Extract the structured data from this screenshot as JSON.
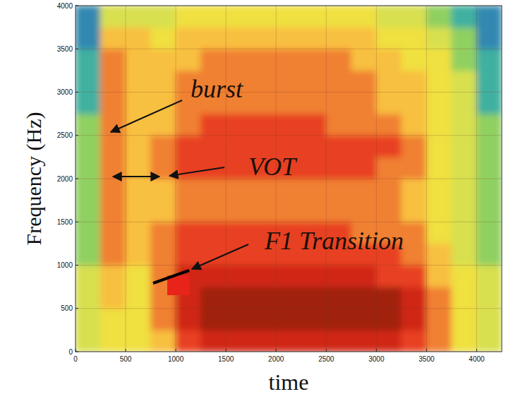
{
  "chart_data": {
    "type": "heatmap",
    "x_label": "time",
    "y_label": "Frequency (Hz)",
    "xlim": [
      0,
      4250
    ],
    "ylim": [
      0,
      4000
    ],
    "xticks": [
      0,
      500,
      1000,
      1500,
      2000,
      2500,
      3000,
      3500,
      4000
    ],
    "yticks": [
      0,
      500,
      1000,
      1500,
      2000,
      2500,
      3000,
      3500,
      4000
    ],
    "grid": true,
    "x_bins": [
      0,
      250,
      500,
      750,
      1000,
      1250,
      1500,
      1750,
      2000,
      2250,
      2500,
      2750,
      3000,
      3250,
      3500,
      3750,
      4000,
      4250
    ],
    "y_bins": [
      0,
      250,
      500,
      750,
      1000,
      1250,
      1500,
      1750,
      2000,
      2250,
      2500,
      2750,
      3000,
      3250,
      3500,
      3750,
      4000
    ],
    "cells": [
      [
        4,
        5,
        5,
        6,
        8,
        9,
        9,
        9,
        9,
        9,
        9,
        9,
        9,
        8,
        7,
        5,
        4
      ],
      [
        4,
        5,
        5,
        7,
        9,
        10,
        10,
        10,
        10,
        10,
        10,
        10,
        10,
        9,
        7,
        5,
        4
      ],
      [
        4,
        6,
        5,
        7,
        9,
        10,
        10,
        10,
        10,
        10,
        10,
        10,
        10,
        9,
        7,
        5,
        4
      ],
      [
        4,
        6,
        5,
        7,
        9,
        9,
        9,
        9,
        9,
        9,
        9,
        9,
        8,
        8,
        6,
        5,
        4
      ],
      [
        3,
        7,
        6,
        7,
        8,
        8,
        8,
        8,
        8,
        8,
        8,
        8,
        8,
        7,
        6,
        4,
        3
      ],
      [
        3,
        7,
        6,
        7,
        8,
        8,
        8,
        8,
        8,
        8,
        8,
        7,
        7,
        7,
        5,
        4,
        3
      ],
      [
        3,
        7,
        6,
        6,
        7,
        7,
        7,
        7,
        7,
        7,
        7,
        7,
        7,
        6,
        5,
        4,
        3
      ],
      [
        3,
        7,
        6,
        6,
        7,
        7,
        7,
        7,
        7,
        7,
        7,
        7,
        7,
        6,
        5,
        4,
        3
      ],
      [
        3,
        7,
        6,
        7,
        8,
        8,
        8,
        8,
        8,
        8,
        8,
        8,
        7,
        7,
        5,
        4,
        3
      ],
      [
        3,
        7,
        6,
        7,
        8,
        8,
        8,
        8,
        8,
        8,
        8,
        8,
        8,
        7,
        5,
        4,
        3
      ],
      [
        3,
        7,
        6,
        6,
        7,
        8,
        8,
        8,
        8,
        8,
        7,
        7,
        7,
        6,
        5,
        4,
        3
      ],
      [
        2,
        7,
        6,
        6,
        7,
        7,
        7,
        7,
        7,
        7,
        7,
        7,
        6,
        6,
        5,
        4,
        2
      ],
      [
        2,
        7,
        6,
        6,
        7,
        7,
        7,
        7,
        7,
        7,
        7,
        7,
        6,
        6,
        5,
        4,
        2
      ],
      [
        2,
        7,
        6,
        6,
        6,
        7,
        7,
        7,
        7,
        7,
        7,
        6,
        6,
        5,
        5,
        3,
        2
      ],
      [
        1,
        6,
        6,
        5,
        6,
        6,
        6,
        6,
        6,
        6,
        6,
        6,
        5,
        5,
        4,
        3,
        1
      ],
      [
        1,
        4,
        4,
        4,
        5,
        5,
        5,
        5,
        5,
        5,
        5,
        5,
        4,
        4,
        3,
        2,
        1
      ]
    ],
    "annotations": [
      "burst",
      "VOT",
      "F1 Transition"
    ]
  }
}
